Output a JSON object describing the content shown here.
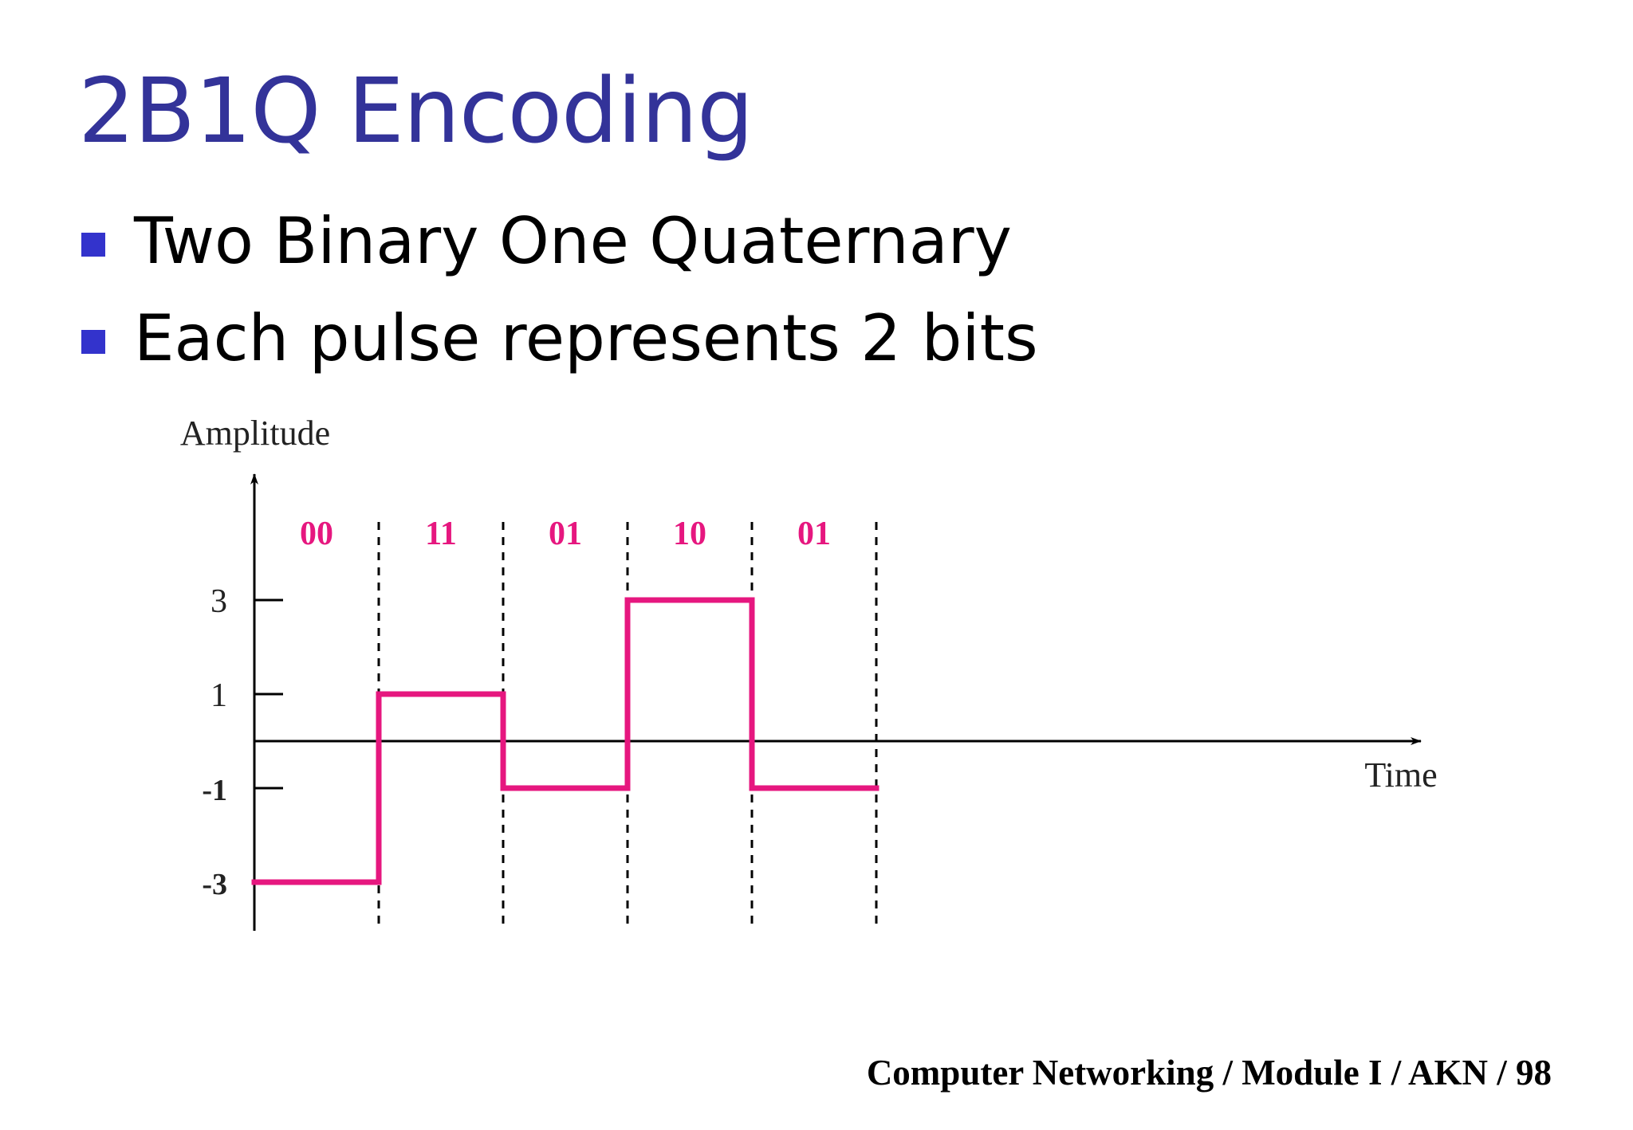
{
  "slide": {
    "title": "2B1Q Encoding",
    "title_color": "#333399",
    "bullet_color": "#3333cc",
    "bullets": [
      {
        "text": "Two Binary One Quaternary"
      },
      {
        "text": "Each pulse represents 2 bits"
      }
    ],
    "footer": "Computer Networking / Module I / AKN / 98"
  },
  "chart_data": {
    "type": "line",
    "line_style": "step",
    "y_axis_label": "Amplitude",
    "x_axis_label": "Time",
    "y_ticks": [
      {
        "value": 3,
        "label": "3"
      },
      {
        "value": 1,
        "label": "1"
      },
      {
        "value": -1,
        "label": "-1"
      },
      {
        "value": -3,
        "label": "-3"
      }
    ],
    "symbols": [
      "00",
      "11",
      "01",
      "10",
      "01"
    ],
    "levels": [
      -3,
      1,
      -1,
      3,
      -1
    ],
    "signal_color": "#e6177f",
    "label_color": "#e6177f",
    "grid": false
  }
}
